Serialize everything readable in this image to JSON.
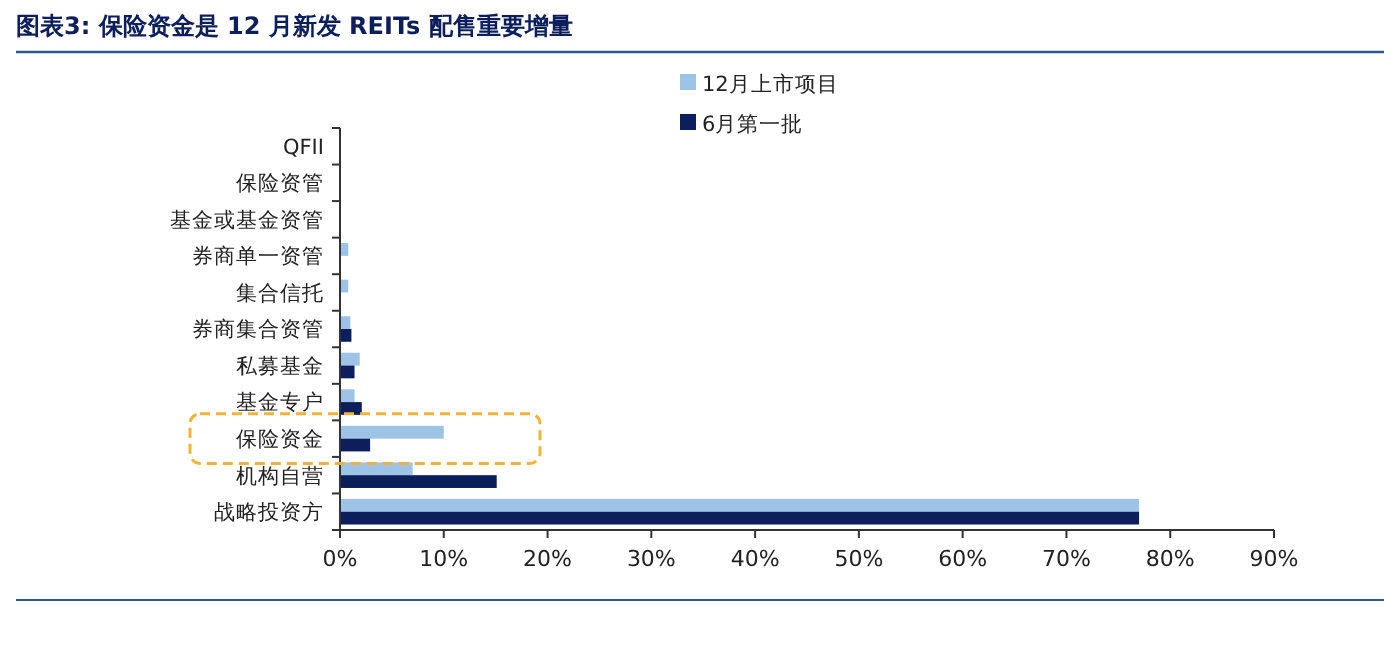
{
  "chart_data": {
    "type": "bar",
    "orientation": "horizontal",
    "title": "图表3:   保险资金是 12 月新发 REITs 配售重要增量",
    "categories": [
      "QFII",
      "保险资管",
      "基金或基金资管",
      "券商单一资管",
      "集合信托",
      "券商集合资管",
      "私募基金",
      "基金专户",
      "保险资金",
      "机构自营",
      "战略投资方"
    ],
    "series": [
      {
        "name": "12月上市项目",
        "color": "#9dc3e6",
        "values": [
          0,
          0,
          0,
          0.8,
          0.8,
          1.0,
          1.9,
          1.4,
          10,
          7,
          77
        ]
      },
      {
        "name": "6月第一批",
        "color": "#0c1f5c",
        "values": [
          0,
          0,
          0,
          0,
          0,
          1.1,
          1.4,
          2.1,
          2.9,
          15.1,
          77
        ]
      }
    ],
    "xlim": [
      0,
      90
    ],
    "xticks": [
      {
        "value": 0,
        "label": "0%"
      },
      {
        "value": 10,
        "label": "10%"
      },
      {
        "value": 20,
        "label": "20%"
      },
      {
        "value": 30,
        "label": "30%"
      },
      {
        "value": 40,
        "label": "40%"
      },
      {
        "value": 50,
        "label": "50%"
      },
      {
        "value": 60,
        "label": "60%"
      },
      {
        "value": 70,
        "label": "70%"
      },
      {
        "value": 80,
        "label": "80%"
      },
      {
        "value": 90,
        "label": "90%"
      }
    ],
    "legend": "top",
    "grid": false
  }
}
